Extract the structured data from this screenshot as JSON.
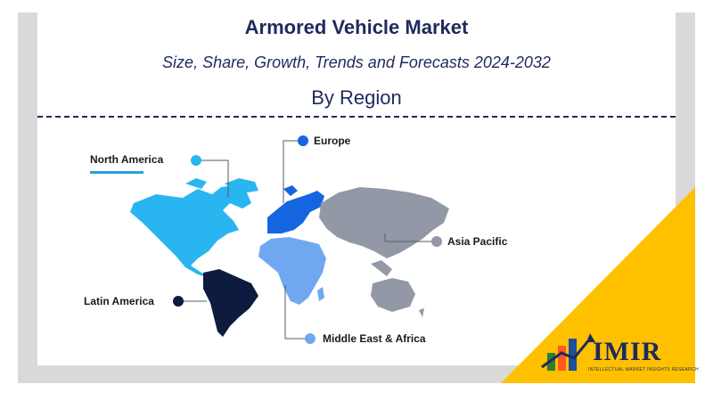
{
  "title": "Armored Vehicle Market",
  "subtitle": "Size, Share, Growth, Trends and Forecasts 2024-2032",
  "section": "By Region",
  "regions": [
    {
      "label": "North America",
      "color": "#29b6f0"
    },
    {
      "label": "Europe",
      "color": "#1565e0"
    },
    {
      "label": "Asia Pacific",
      "color": "#9298a6"
    },
    {
      "label": "Latin America",
      "color": "#0d1b3e"
    },
    {
      "label": "Middle East & Africa",
      "color": "#6fa8f0"
    }
  ],
  "logo": {
    "text": "IMIR",
    "tagline": "INTELLECTUAL MARKET INSIGHTS RESEARCH",
    "accent": "#ffc000"
  }
}
